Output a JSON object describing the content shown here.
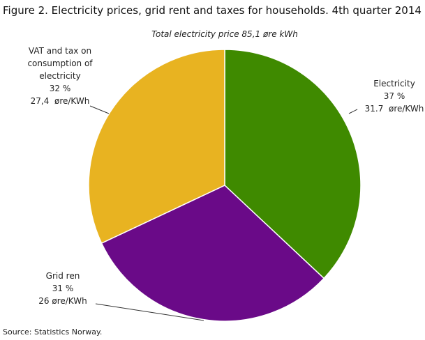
{
  "chart_data": {
    "type": "pie",
    "title": "Figure 2. Electricity prices, grid rent and taxes for households. 4th quarter 2014",
    "subtitle": "Total electricity  price 85,1 øre kWh",
    "categories": [
      "Electricity",
      "Grid ren",
      "VAT and tax on consumption of electricity"
    ],
    "values": [
      37,
      31,
      32
    ],
    "value_labels": [
      "37 %",
      "31 %",
      "32 %"
    ],
    "amounts": [
      31.7,
      26,
      27.4
    ],
    "amount_labels": [
      "31.7  øre/KWh",
      "26 øre/KWh",
      "27,4  øre/KWh"
    ],
    "colors": [
      "#3f8a00",
      "#6a0a88",
      "#e8b321"
    ],
    "source": "Source: Statistics Norway."
  }
}
